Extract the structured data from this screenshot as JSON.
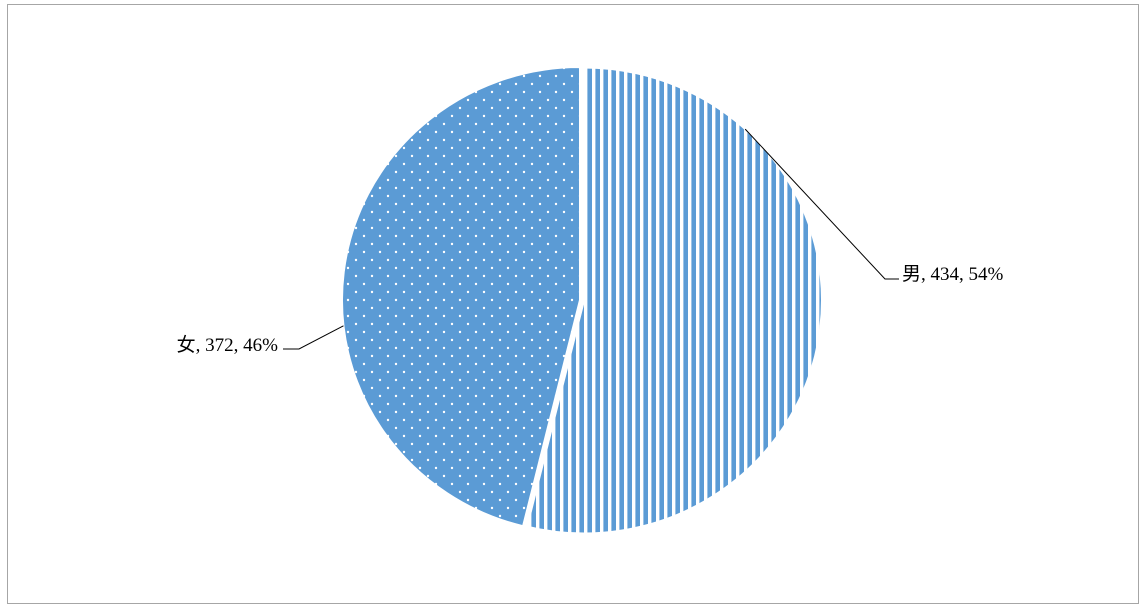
{
  "chart_data": {
    "type": "pie",
    "categories": [
      "男",
      "女"
    ],
    "values": [
      434,
      372
    ],
    "percents": [
      "54%",
      "46%"
    ],
    "labels": [
      "男, 434, 54%",
      "女, 372, 46%"
    ],
    "legend": "none",
    "colors": {
      "fill": "#5b9bd5",
      "pattern_line": "#ffffff",
      "leader_line": "#000000"
    },
    "patterns": [
      "vertical-stripes",
      "dots"
    ]
  }
}
